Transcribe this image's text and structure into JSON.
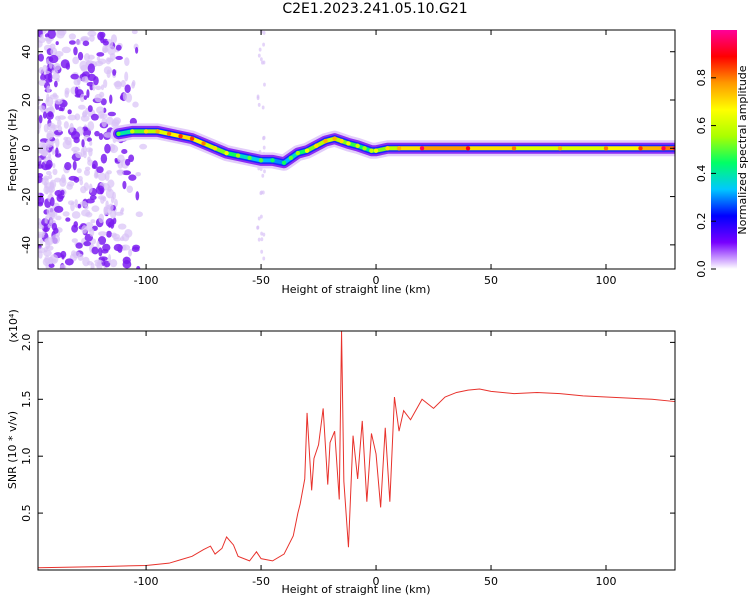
{
  "page_title": "C2E1.2023.241.05.10.G21",
  "chart_data": [
    {
      "type": "heatmap",
      "title": "C2E1.2023.241.05.10.G21",
      "xlabel": "Height of straight line (km)",
      "ylabel": "Frequency (Hz)",
      "xlim": [
        -147,
        130
      ],
      "ylim": [
        -50,
        49
      ],
      "xticks": [
        -100,
        -50,
        0,
        50,
        100
      ],
      "yticks": [
        -40,
        -20,
        0,
        20,
        40
      ],
      "grid": false,
      "colorbar": {
        "label": "Normalized spectral amplitude",
        "range": [
          0,
          1
        ],
        "ticks": [
          0.0,
          0.2,
          0.4,
          0.6,
          0.8
        ],
        "colors": [
          "#ffffff",
          "#7700ff",
          "#0000ff",
          "#00c8ff",
          "#00ff66",
          "#aaff00",
          "#ffff00",
          "#ff9900",
          "#ff0000",
          "#ff0099"
        ]
      },
      "ridge": {
        "x": [
          -112,
          -106,
          -100,
          -95,
          -90,
          -85,
          -80,
          -75,
          -70,
          -65,
          -60,
          -55,
          -50,
          -45,
          -40,
          -37,
          -34,
          -30,
          -26,
          -22,
          -18,
          -15,
          -12,
          -8,
          -5,
          -2,
          0,
          5,
          10,
          20,
          40,
          60,
          80,
          100,
          115,
          125,
          130
        ],
        "freq": [
          6,
          7,
          7,
          7,
          6,
          5,
          4,
          2,
          0,
          -2,
          -3,
          -4,
          -5,
          -5,
          -6,
          -4,
          -2,
          -1,
          1,
          3,
          4,
          3,
          2,
          1,
          0,
          -1,
          -1,
          0,
          0,
          0,
          0,
          0,
          0,
          0,
          0,
          0,
          0
        ],
        "amplitude": [
          0.35,
          0.45,
          0.55,
          0.6,
          0.65,
          0.7,
          0.7,
          0.65,
          0.55,
          0.5,
          0.4,
          0.35,
          0.35,
          0.3,
          0.3,
          0.35,
          0.4,
          0.5,
          0.55,
          0.6,
          0.6,
          0.55,
          0.5,
          0.45,
          0.4,
          0.45,
          0.5,
          0.55,
          0.6,
          0.8,
          0.75,
          0.65,
          0.6,
          0.65,
          0.7,
          0.8,
          0.8
        ]
      },
      "noise_band": [
        -147,
        -100
      ]
    },
    {
      "type": "line",
      "xlabel": "Height of straight line (km)",
      "ylabel": "SNR (10 * v/v)",
      "y_multiplier": "(x10⁴)",
      "xlim": [
        -147,
        130
      ],
      "ylim": [
        0,
        2.1
      ],
      "xticks": [
        -100,
        -50,
        0,
        50,
        100
      ],
      "yticks": [
        0.5,
        1.0,
        1.5,
        2.0
      ],
      "line_color": "#e8322c",
      "series": [
        {
          "x": [
            -147,
            -120,
            -100,
            -90,
            -85,
            -80,
            -75,
            -72,
            -70,
            -67,
            -65,
            -62,
            -60,
            -55,
            -52,
            -50,
            -45,
            -40,
            -36,
            -34,
            -33,
            -31,
            -30,
            -28,
            -27,
            -25,
            -23,
            -21,
            -20,
            -18,
            -16,
            -15,
            -14,
            -12,
            -10,
            -8,
            -6,
            -4,
            -2,
            0,
            2,
            4,
            6,
            8,
            10,
            12,
            15,
            20,
            25,
            30,
            35,
            40,
            45,
            50,
            60,
            70,
            80,
            90,
            100,
            110,
            120,
            130
          ],
          "y": [
            0.02,
            0.03,
            0.04,
            0.06,
            0.09,
            0.12,
            0.18,
            0.21,
            0.14,
            0.19,
            0.29,
            0.22,
            0.12,
            0.08,
            0.16,
            0.1,
            0.08,
            0.14,
            0.3,
            0.5,
            0.58,
            0.8,
            1.38,
            0.7,
            0.98,
            1.1,
            1.42,
            0.75,
            1.12,
            1.22,
            0.62,
            2.1,
            0.78,
            0.2,
            1.18,
            0.8,
            1.31,
            0.6,
            1.2,
            1.02,
            0.55,
            1.25,
            0.6,
            1.52,
            1.22,
            1.4,
            1.32,
            1.5,
            1.42,
            1.52,
            1.56,
            1.58,
            1.59,
            1.57,
            1.55,
            1.56,
            1.55,
            1.53,
            1.52,
            1.51,
            1.5,
            1.48
          ]
        }
      ]
    }
  ]
}
